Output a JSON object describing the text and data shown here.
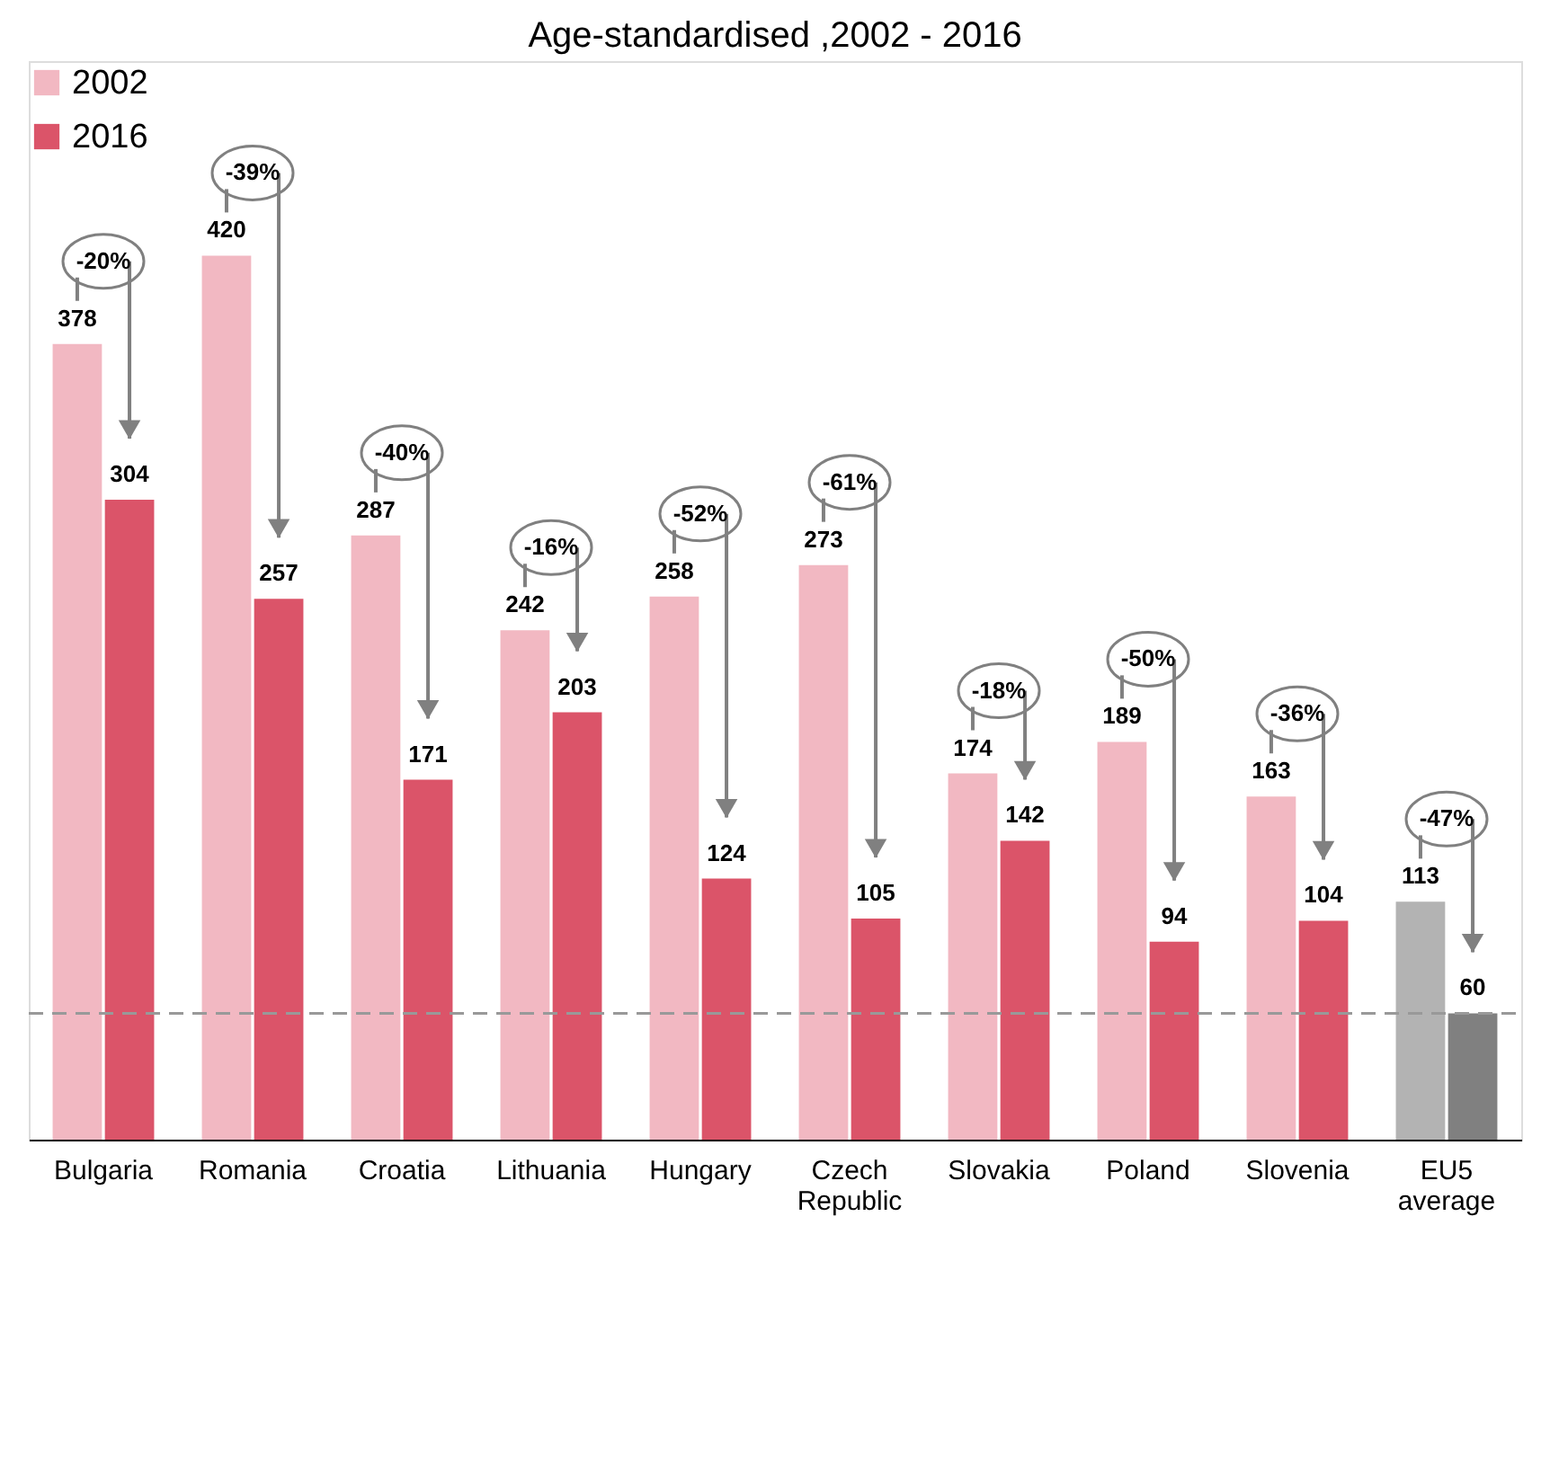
{
  "chart_data": {
    "type": "bar",
    "title": "Age-standardised ,2002 - 2016",
    "categories": [
      "Bulgaria",
      "Romania",
      "Croatia",
      "Lithuania",
      "Hungary",
      "Czech Republic",
      "Slovakia",
      "Poland",
      "Slovenia",
      "EU5 average"
    ],
    "series": [
      {
        "name": "2002",
        "color": "#f2b8c2",
        "colors": [
          "#f2b8c2",
          "#f2b8c2",
          "#f2b8c2",
          "#f2b8c2",
          "#f2b8c2",
          "#f2b8c2",
          "#f2b8c2",
          "#f2b8c2",
          "#f2b8c2",
          "#b3b3b3"
        ],
        "values": [
          378,
          420,
          287,
          242,
          258,
          273,
          174,
          189,
          163,
          113
        ]
      },
      {
        "name": "2016",
        "color": "#db5469",
        "colors": [
          "#db5469",
          "#db5469",
          "#db5469",
          "#db5469",
          "#db5469",
          "#db5469",
          "#db5469",
          "#db5469",
          "#db5469",
          "#808080"
        ],
        "values": [
          304,
          257,
          171,
          203,
          124,
          105,
          142,
          94,
          104,
          60
        ]
      }
    ],
    "data_labels": true,
    "legend": "top left",
    "tick_labels": "x",
    "ref_lines": [
      {
        "axis": "y",
        "value": 60,
        "color": "#999999",
        "line_style": "dashed"
      }
    ],
    "annotations": [
      "-20%",
      "-39%",
      "-40%",
      "-16%",
      "-52%",
      "-61%",
      "-18%",
      "-50%",
      "-36%",
      "-47%"
    ]
  }
}
